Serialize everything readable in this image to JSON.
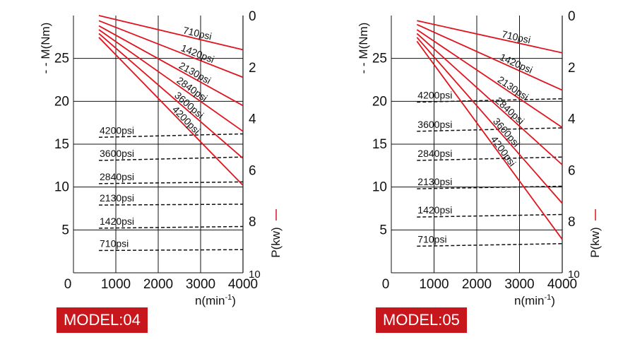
{
  "chart_data": [
    {
      "type": "line",
      "model_label": "MODEL:04",
      "x_tick_labels": [
        "0",
        "1000",
        "2000",
        "3000",
        "4000"
      ],
      "xlabel": "n(min",
      "xlabel_sup": "-1",
      "xlabel_close": ")",
      "xlim": [
        0,
        4000
      ],
      "ylabel_left": "- - M(Nm)",
      "ylim_left": [
        0,
        30
      ],
      "left_tick_labels": [
        "25",
        "20",
        "15",
        "10",
        "5"
      ],
      "ylabel_right": "P(kw)",
      "right_tick_labels": [
        "0",
        "2",
        "4",
        "6",
        "8",
        "10"
      ],
      "ylim_right": [
        0,
        10.0
      ],
      "grid": true,
      "power_series": [
        {
          "name": "710psi",
          "x": [
            600,
            4000
          ],
          "y": [
            0.0,
            1.33
          ]
        },
        {
          "name": "1420psi",
          "x": [
            600,
            4000
          ],
          "y": [
            0.2,
            2.4
          ]
        },
        {
          "name": "2130psi",
          "x": [
            600,
            4000
          ],
          "y": [
            0.4,
            3.5
          ]
        },
        {
          "name": "2840psi",
          "x": [
            600,
            4000
          ],
          "y": [
            0.55,
            4.5
          ]
        },
        {
          "name": "3600psi",
          "x": [
            600,
            4000
          ],
          "y": [
            0.7,
            5.55
          ]
        },
        {
          "name": "4200psi",
          "x": [
            600,
            4000
          ],
          "y": [
            0.85,
            6.6
          ]
        }
      ],
      "torque_series": [
        {
          "name": "4200psi",
          "x": [
            600,
            4000
          ],
          "y": [
            15.8,
            16.2
          ]
        },
        {
          "name": "3600psi",
          "x": [
            600,
            4000
          ],
          "y": [
            13.1,
            13.5
          ]
        },
        {
          "name": "2840psi",
          "x": [
            600,
            4000
          ],
          "y": [
            10.4,
            10.6
          ]
        },
        {
          "name": "2130psi",
          "x": [
            600,
            4000
          ],
          "y": [
            7.9,
            8.0
          ]
        },
        {
          "name": "1420psi",
          "x": [
            600,
            4000
          ],
          "y": [
            5.2,
            5.4
          ]
        },
        {
          "name": "710psi",
          "x": [
            600,
            4000
          ],
          "y": [
            2.6,
            2.7
          ]
        }
      ],
      "power_color": "#e0141e",
      "torque_color": "#111111"
    },
    {
      "type": "line",
      "model_label": "MODEL:05",
      "x_tick_labels": [
        "0",
        "1000",
        "2000",
        "3000",
        "4000"
      ],
      "xlabel": "n(min",
      "xlabel_sup": "-1",
      "xlabel_close": ")",
      "xlim": [
        0,
        4000
      ],
      "ylabel_left": "- - M(Nm)",
      "ylim_left": [
        0,
        30
      ],
      "left_tick_labels": [
        "25",
        "20",
        "15",
        "10",
        "5"
      ],
      "ylabel_right": "P(kw)",
      "right_tick_labels": [
        "0",
        "2",
        "4",
        "6",
        "8",
        "10"
      ],
      "ylim_right": [
        0,
        10.0
      ],
      "grid": true,
      "power_series": [
        {
          "name": "710psi",
          "x": [
            600,
            4000
          ],
          "y": [
            0.2,
            1.45
          ]
        },
        {
          "name": "1420psi",
          "x": [
            600,
            4000
          ],
          "y": [
            0.35,
            2.9
          ]
        },
        {
          "name": "2130psi",
          "x": [
            600,
            4000
          ],
          "y": [
            0.55,
            4.35
          ]
        },
        {
          "name": "2840psi",
          "x": [
            600,
            4000
          ],
          "y": [
            0.7,
            5.8
          ]
        },
        {
          "name": "3600psi",
          "x": [
            600,
            4000
          ],
          "y": [
            0.85,
            7.3
          ]
        },
        {
          "name": "4200psi",
          "x": [
            600,
            4000
          ],
          "y": [
            1.0,
            8.7
          ]
        }
      ],
      "torque_series": [
        {
          "name": "4200psi",
          "x": [
            600,
            4000
          ],
          "y": [
            19.9,
            20.3
          ]
        },
        {
          "name": "3600psi",
          "x": [
            600,
            4000
          ],
          "y": [
            16.5,
            16.9
          ]
        },
        {
          "name": "2840psi",
          "x": [
            600,
            4000
          ],
          "y": [
            13.1,
            13.5
          ]
        },
        {
          "name": "2130psi",
          "x": [
            600,
            4000
          ],
          "y": [
            9.8,
            10.1
          ]
        },
        {
          "name": "1420psi",
          "x": [
            600,
            4000
          ],
          "y": [
            6.5,
            6.8
          ]
        },
        {
          "name": "710psi",
          "x": [
            600,
            4000
          ],
          "y": [
            3.1,
            3.4
          ]
        }
      ],
      "power_color": "#e0141e",
      "torque_color": "#111111"
    }
  ]
}
